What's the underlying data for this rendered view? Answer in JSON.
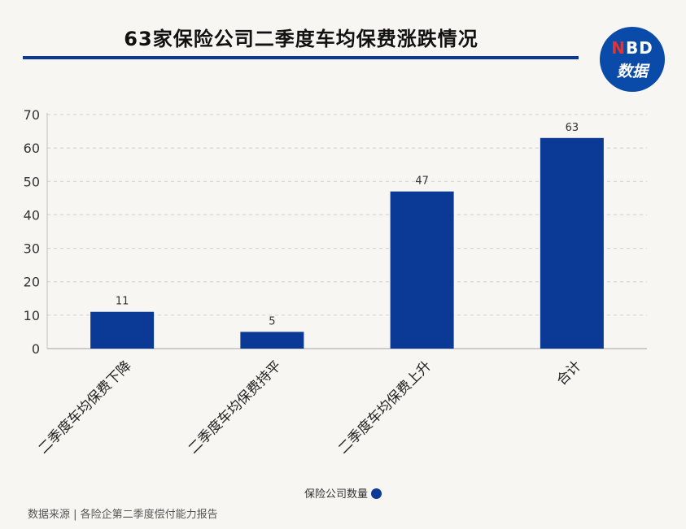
{
  "title": "63家保险公司二季度车均保费涨跌情况",
  "logo": {
    "top_prefix": "N",
    "top_rest": "BD",
    "bottom": "数据"
  },
  "source": "数据来源 | 各险企第二季度偿付能力报告",
  "colors": {
    "bar": "#0a3a96",
    "title_rule": "#0a3a96",
    "logo_bg": "#0a4aa8"
  },
  "chart_data": {
    "type": "bar",
    "categories": [
      "二季度车均保费下降",
      "二季度车均保费持平",
      "二季度车均保费上升",
      "合计"
    ],
    "series": [
      {
        "name": "保险公司数量",
        "values": [
          11,
          5,
          47,
          63
        ]
      }
    ],
    "ylim": [
      0,
      70
    ],
    "yticks": [
      0,
      10,
      20,
      30,
      40,
      50,
      60,
      70
    ],
    "grid": true,
    "legend_position": "bottom-center",
    "data_labels": true
  }
}
